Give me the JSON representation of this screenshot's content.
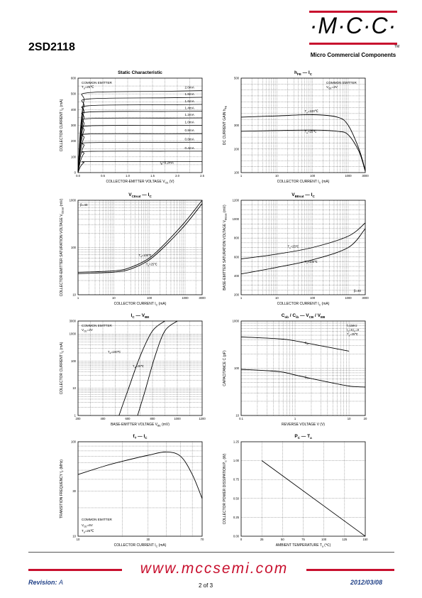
{
  "header": {
    "part_number": "2SD2118",
    "logo_text": "·M·C·C·",
    "logo_tm": "TM",
    "company": "Micro Commercial Components"
  },
  "footer": {
    "url": "www.mccsemi.com",
    "revision_label": "Revision:",
    "revision_value": "A",
    "page": "2 of 3",
    "date": "2012/03/08"
  },
  "colors": {
    "brand_red": "#c8102e",
    "footer_blue": "#1f3f86"
  },
  "chart_data": [
    {
      "id": "static",
      "type": "line",
      "title": "Static Characteristic",
      "xlabel": "COLLECTOR-EMITTER VOLTAGE",
      "xlabel_sym": "V",
      "xlabel_sub": "CE",
      "xlabel_unit": "(V)",
      "ylabel": "COLLECTOR CURRENT",
      "ylabel_sym": "I",
      "ylabel_sub": "C",
      "ylabel_unit": "(mA)",
      "x_ticks": [
        "0.0",
        "0.5",
        "1.0",
        "1.5",
        "2.0",
        "2.5"
      ],
      "y_ticks": [
        "0",
        "100",
        "200",
        "300",
        "400",
        "500",
        "600"
      ],
      "annotations": [
        "COMMON EMITTER",
        "T_a=25℃"
      ],
      "series": [
        {
          "name": "2.0mA",
          "values": [
            508,
            520
          ]
        },
        {
          "name": "1.8mA",
          "values": [
            468,
            478
          ]
        },
        {
          "name": "1.6mA",
          "values": [
            425,
            433
          ]
        },
        {
          "name": "1.4mA",
          "values": [
            385,
            390
          ]
        },
        {
          "name": "1.2mA",
          "values": [
            343,
            347
          ]
        },
        {
          "name": "1.0mA",
          "values": [
            297,
            300
          ]
        },
        {
          "name": "0.8mA",
          "values": [
            245,
            247
          ]
        },
        {
          "name": "0.6mA",
          "values": [
            190,
            192
          ]
        },
        {
          "name": "0.4mA",
          "values": [
            135,
            136
          ]
        },
        {
          "name": "I_B=0.2mA",
          "values": [
            70,
            70
          ]
        }
      ]
    },
    {
      "id": "hfe",
      "type": "line",
      "title": "h_FE — I_C",
      "xlabel": "COLLECTOR CURRENT",
      "xlabel_sym": "I",
      "xlabel_sub": "C",
      "xlabel_unit": "(mA)",
      "ylabel": "DC CURRENT GAIN",
      "ylabel_sym": "h",
      "ylabel_sub": "FE",
      "x_ticks": [
        "1",
        "10",
        "100",
        "1000",
        "3000"
      ],
      "y_ticks": [
        "100",
        "200",
        "300",
        "500"
      ],
      "annotations": [
        "COMMON EMITTER",
        "V_CE=2V",
        "T_a=100℃",
        "T_a=25℃"
      ],
      "series": [
        {
          "name": "T_a=100℃",
          "x": [
            1,
            10,
            100,
            500,
            1000,
            2000,
            3000
          ],
          "values": [
            335,
            340,
            345,
            335,
            300,
            200,
            110
          ]
        },
        {
          "name": "T_a=25℃",
          "x": [
            1,
            10,
            100,
            500,
            1000,
            2000,
            3000
          ],
          "values": [
            275,
            278,
            280,
            275,
            260,
            190,
            105
          ]
        }
      ]
    },
    {
      "id": "vcesat",
      "type": "line",
      "title": "V_CEsat — I_C",
      "xlabel": "COLLECTOR CURRENT",
      "xlabel_sym": "I",
      "xlabel_sub": "C",
      "xlabel_unit": "(mA)",
      "ylabel": "COLLECTOR-EMITTER SATURATION VOLTAGE",
      "ylabel_sym": "V",
      "ylabel_sub": "CEsat",
      "ylabel_unit": "(mV)",
      "x_ticks": [
        "1",
        "10",
        "100",
        "1000",
        "3000"
      ],
      "y_ticks": [
        "10",
        "100",
        "1000"
      ],
      "annotations": [
        "β=40",
        "T_a=100℃",
        "T_a=25℃"
      ],
      "series": [
        {
          "name": "T_a=100℃",
          "x": [
            1,
            10,
            30,
            100,
            300,
            1000,
            3000
          ],
          "values": [
            30,
            32,
            38,
            60,
            130,
            350,
            1000
          ]
        },
        {
          "name": "T_a=25℃",
          "x": [
            1,
            10,
            30,
            100,
            300,
            1000,
            3000
          ],
          "values": [
            28,
            30,
            35,
            55,
            115,
            300,
            850
          ]
        }
      ]
    },
    {
      "id": "vbesat",
      "type": "line",
      "title": "V_BEsat — I_C",
      "xlabel": "COLLECTOR CURRENT",
      "xlabel_sym": "I",
      "xlabel_sub": "C",
      "xlabel_unit": "(mA)",
      "ylabel": "BASE-EMITTER SATURATION VOLTAGE",
      "ylabel_sym": "V",
      "ylabel_sub": "BEsat",
      "ylabel_unit": "(mV)",
      "x_ticks": [
        "1",
        "10",
        "100",
        "1000",
        "3000"
      ],
      "y_ticks": [
        "200",
        "400",
        "600",
        "800",
        "1000",
        "1200"
      ],
      "annotations": [
        "β=40",
        "T_a=25℃",
        "T_a=100℃"
      ],
      "series": [
        {
          "name": "T_a=25℃",
          "x": [
            1,
            10,
            100,
            1000,
            3000
          ],
          "values": [
            580,
            630,
            700,
            820,
            960
          ]
        },
        {
          "name": "T_a=100℃",
          "x": [
            1,
            10,
            100,
            1000,
            3000
          ],
          "values": [
            420,
            490,
            570,
            700,
            900
          ]
        }
      ]
    },
    {
      "id": "icvbe",
      "type": "line",
      "title": "I_C — V_BE",
      "xlabel": "BASE-EMITTER VOLTAGE",
      "xlabel_sym": "V",
      "xlabel_sub": "BE",
      "xlabel_unit": "(mV)",
      "ylabel": "COLLECTOR CURRENT",
      "ylabel_sym": "I",
      "ylabel_sub": "C",
      "ylabel_unit": "(mA)",
      "x_ticks": [
        "200",
        "400",
        "600",
        "800",
        "1000",
        "1200"
      ],
      "y_ticks": [
        "1",
        "10",
        "100",
        "1000",
        "3000"
      ],
      "annotations": [
        "COMMON EMITTER",
        "V_CE=2V",
        "T_a=100℃",
        "T_a=25℃"
      ],
      "series": [
        {
          "name": "T_a=100℃",
          "x": [
            530,
            600,
            700,
            800,
            900
          ],
          "values": [
            1,
            8,
            150,
            1300,
            3000
          ]
        },
        {
          "name": "T_a=25℃",
          "x": [
            680,
            740,
            820,
            900,
            1000
          ],
          "values": [
            1,
            8,
            150,
            1300,
            3000
          ]
        }
      ]
    },
    {
      "id": "cap",
      "type": "line",
      "title": "C_ob / C_ib — V_CB / V_EB",
      "xlabel": "REVERSE VOLTAGE",
      "xlabel_sym": "V",
      "xlabel_unit": "(V)",
      "ylabel": "CAPACITANCE",
      "ylabel_sym": "C",
      "ylabel_unit": "(pF)",
      "x_ticks": [
        "0.1",
        "1",
        "10",
        "20"
      ],
      "y_ticks": [
        "10",
        "100",
        "1000"
      ],
      "annotations": [
        "f=1MHz",
        "I_C=0,I_E=0",
        "T_a=25℃",
        "C_ib",
        "C_ob"
      ],
      "series": [
        {
          "name": "C_ib",
          "x": [
            0.1,
            0.5,
            1,
            3,
            10
          ],
          "values": [
            460,
            420,
            380,
            300,
            230
          ]
        },
        {
          "name": "C_ob",
          "x": [
            0.1,
            0.5,
            1,
            3,
            10,
            20
          ],
          "values": [
            95,
            85,
            72,
            55,
            42,
            40
          ]
        }
      ]
    },
    {
      "id": "ft",
      "type": "line",
      "title": "f_T — I_C",
      "xlabel": "COLLECTOR CURRENT",
      "xlabel_sym": "I",
      "xlabel_sub": "C",
      "xlabel_unit": "(mA)",
      "ylabel": "TRANSITION FREQUENCY",
      "ylabel_sym": "f",
      "ylabel_sub": "T",
      "ylabel_unit": "(MHz)",
      "x_ticks": [
        "10",
        "30",
        "70"
      ],
      "y_ticks": [
        "10",
        "30",
        "100"
      ],
      "annotations": [
        "COMMON EMITTER",
        "V_CE=6V",
        "T_a=25℃"
      ],
      "series": [
        {
          "name": "f_T",
          "x": [
            10,
            15,
            20,
            30,
            40,
            50,
            60,
            70
          ],
          "values": [
            45,
            55,
            62,
            72,
            78,
            70,
            45,
            25
          ]
        }
      ]
    },
    {
      "id": "pc",
      "type": "line",
      "title": "P_C — T_a",
      "xlabel": "AMBIENT TEMPERATURE",
      "xlabel_sym": "T",
      "xlabel_sub": "a",
      "xlabel_unit": "(℃)",
      "ylabel": "COLLECTOR POWER DISSIPATION",
      "ylabel_sym": "P",
      "ylabel_sub": "C",
      "ylabel_unit": "(W)",
      "x_ticks": [
        "0",
        "25",
        "50",
        "75",
        "100",
        "125",
        "150"
      ],
      "y_ticks": [
        "0.00",
        "0.25",
        "0.50",
        "0.75",
        "1.00",
        "1.25"
      ],
      "series": [
        {
          "name": "P_C",
          "x": [
            25,
            150
          ],
          "values": [
            1.0,
            0.0
          ]
        }
      ]
    }
  ]
}
